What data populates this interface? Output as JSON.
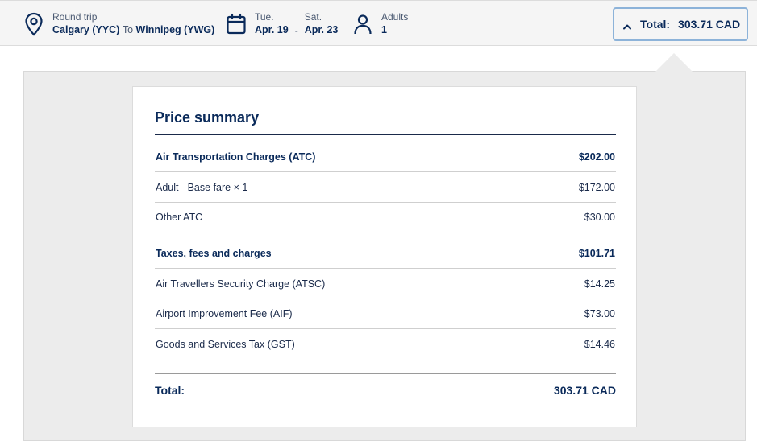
{
  "header": {
    "trip": {
      "label": "Round trip",
      "route_from": "Calgary (YYC)",
      "route_to_word": "To",
      "route_to": "Winnipeg (YWG)"
    },
    "dates": {
      "depart_day": "Tue.",
      "depart_date": "Apr. 19",
      "separator": "-",
      "return_day": "Sat.",
      "return_date": "Apr. 23"
    },
    "passengers": {
      "label": "Adults",
      "count": "1"
    },
    "total_button": {
      "label": "Total:",
      "amount": "303.71 CAD"
    }
  },
  "summary": {
    "title": "Price summary",
    "rows": [
      {
        "label": "Air Transportation Charges (ATC)",
        "amount": "$202.00"
      },
      {
        "label": "Adult - Base fare × 1",
        "amount": "$172.00"
      },
      {
        "label": "Other ATC",
        "amount": "$30.00"
      },
      {
        "label": "Taxes, fees and charges",
        "amount": "$101.71"
      },
      {
        "label": "Air Travellers Security Charge (ATSC)",
        "amount": "$14.25"
      },
      {
        "label": "Airport Improvement Fee (AIF)",
        "amount": "$73.00"
      },
      {
        "label": "Goods and Services Tax (GST)",
        "amount": "$14.46"
      }
    ],
    "total": {
      "label": "Total:",
      "amount": "303.71 CAD"
    }
  },
  "colors": {
    "brand_navy": "#0a2a5a",
    "accent_border": "#8db3d9"
  },
  "icons": {
    "trip": "location-pin-icon",
    "dates": "calendar-icon",
    "passengers": "person-icon",
    "toggle": "chevron-up-icon"
  }
}
